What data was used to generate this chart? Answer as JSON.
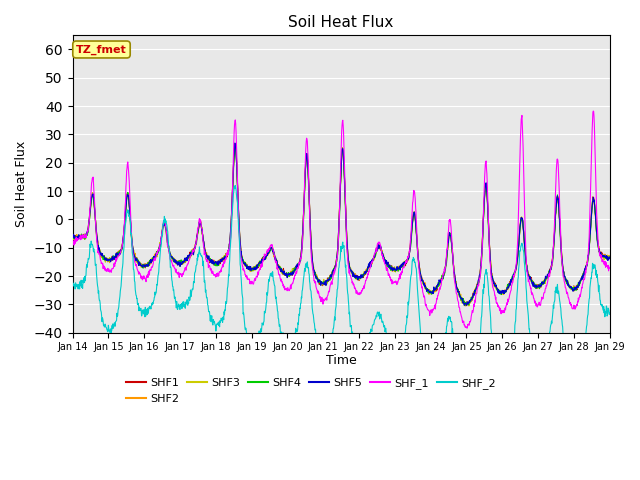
{
  "title": "Soil Heat Flux",
  "xlabel": "Time",
  "ylabel": "Soil Heat Flux",
  "annotation": "TZ_fmet",
  "xlim_days": [
    14,
    29
  ],
  "ylim": [
    -40,
    65
  ],
  "yticks": [
    -40,
    -30,
    -20,
    -10,
    0,
    10,
    20,
    30,
    40,
    50,
    60
  ],
  "xtick_labels": [
    "Jan 14",
    "Jan 15",
    "Jan 16",
    "Jan 17",
    "Jan 18",
    "Jan 19",
    "Jan 20",
    "Jan 21",
    "Jan 22",
    "Jan 23",
    "Jan 24",
    "Jan 25",
    "Jan 26",
    "Jan 27",
    "Jan 28",
    "Jan 29"
  ],
  "series_colors": {
    "SHF1": "#cc0000",
    "SHF2": "#ff9900",
    "SHF3": "#cccc00",
    "SHF4": "#00cc00",
    "SHF5": "#0000cc",
    "SHF_1": "#ff00ff",
    "SHF_2": "#00cccc"
  },
  "bg_color": "#e8e8e8",
  "annotation_bg": "#ffff99",
  "annotation_border": "#998800"
}
